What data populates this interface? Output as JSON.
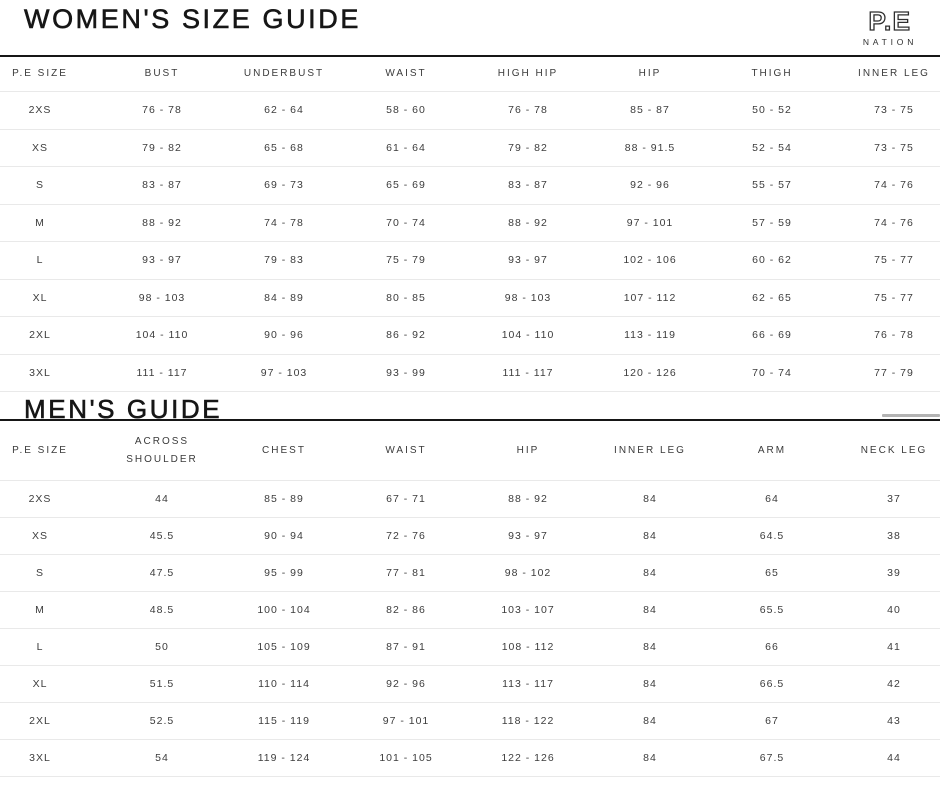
{
  "theme": {
    "background": "#ffffff",
    "title_color": "#161616",
    "text_color": "#3c3c3c",
    "divider_color": "#e9e9e9",
    "section_rule_color": "#161616",
    "scrollbar_thumb_color": "#b3b3b3"
  },
  "logo": {
    "primary": "P.E",
    "secondary": "NATION"
  },
  "womens": {
    "title": "WOMEN'S SIZE GUIDE",
    "headers": [
      "P.E SIZE",
      "BUST",
      "UNDERBUST",
      "WAIST",
      "HIGH HIP",
      "HIP",
      "THIGH",
      "INNER LEG"
    ],
    "rows": [
      [
        "2XS",
        "76 - 78",
        "62 - 64",
        "58 - 60",
        "76 - 78",
        "85 - 87",
        "50 - 52",
        "73 - 75"
      ],
      [
        "XS",
        "79 - 82",
        "65 - 68",
        "61 - 64",
        "79 - 82",
        "88 - 91.5",
        "52 - 54",
        "73 - 75"
      ],
      [
        "S",
        "83 - 87",
        "69 - 73",
        "65 - 69",
        "83 - 87",
        "92 - 96",
        "55 - 57",
        "74 - 76"
      ],
      [
        "M",
        "88 - 92",
        "74 - 78",
        "70 - 74",
        "88 - 92",
        "97 - 101",
        "57 - 59",
        "74 - 76"
      ],
      [
        "L",
        "93 - 97",
        "79 - 83",
        "75 - 79",
        "93 - 97",
        "102 - 106",
        "60 - 62",
        "75 - 77"
      ],
      [
        "XL",
        "98 - 103",
        "84 - 89",
        "80 - 85",
        "98 - 103",
        "107 - 112",
        "62 - 65",
        "75 - 77"
      ],
      [
        "2XL",
        "104 - 110",
        "90 - 96",
        "86 - 92",
        "104 - 110",
        "113 - 119",
        "66 - 69",
        "76 - 78"
      ],
      [
        "3XL",
        "111 - 117",
        "97 - 103",
        "93 - 99",
        "111 - 117",
        "120 - 126",
        "70 - 74",
        "77 - 79"
      ]
    ]
  },
  "mens": {
    "title": "MEN'S GUIDE",
    "headers": [
      "P.E SIZE",
      "ACROSS SHOULDER",
      "CHEST",
      "WAIST",
      "HIP",
      "INNER LEG",
      "ARM",
      "NECK LEG"
    ],
    "rows": [
      [
        "2XS",
        "44",
        "85 - 89",
        "67 - 71",
        "88 - 92",
        "84",
        "64",
        "37"
      ],
      [
        "XS",
        "45.5",
        "90 - 94",
        "72 - 76",
        "93 - 97",
        "84",
        "64.5",
        "38"
      ],
      [
        "S",
        "47.5",
        "95 - 99",
        "77 - 81",
        "98 - 102",
        "84",
        "65",
        "39"
      ],
      [
        "M",
        "48.5",
        "100 - 104",
        "82 - 86",
        "103 - 107",
        "84",
        "65.5",
        "40"
      ],
      [
        "L",
        "50",
        "105 - 109",
        "87 - 91",
        "108 - 112",
        "84",
        "66",
        "41"
      ],
      [
        "XL",
        "51.5",
        "110 - 114",
        "92 - 96",
        "113 - 117",
        "84",
        "66.5",
        "42"
      ],
      [
        "2XL",
        "52.5",
        "115 - 119",
        "97 - 101",
        "118 - 122",
        "84",
        "67",
        "43"
      ],
      [
        "3XL",
        "54",
        "119 - 124",
        "101 - 105",
        "122 - 126",
        "84",
        "67.5",
        "44"
      ]
    ]
  }
}
